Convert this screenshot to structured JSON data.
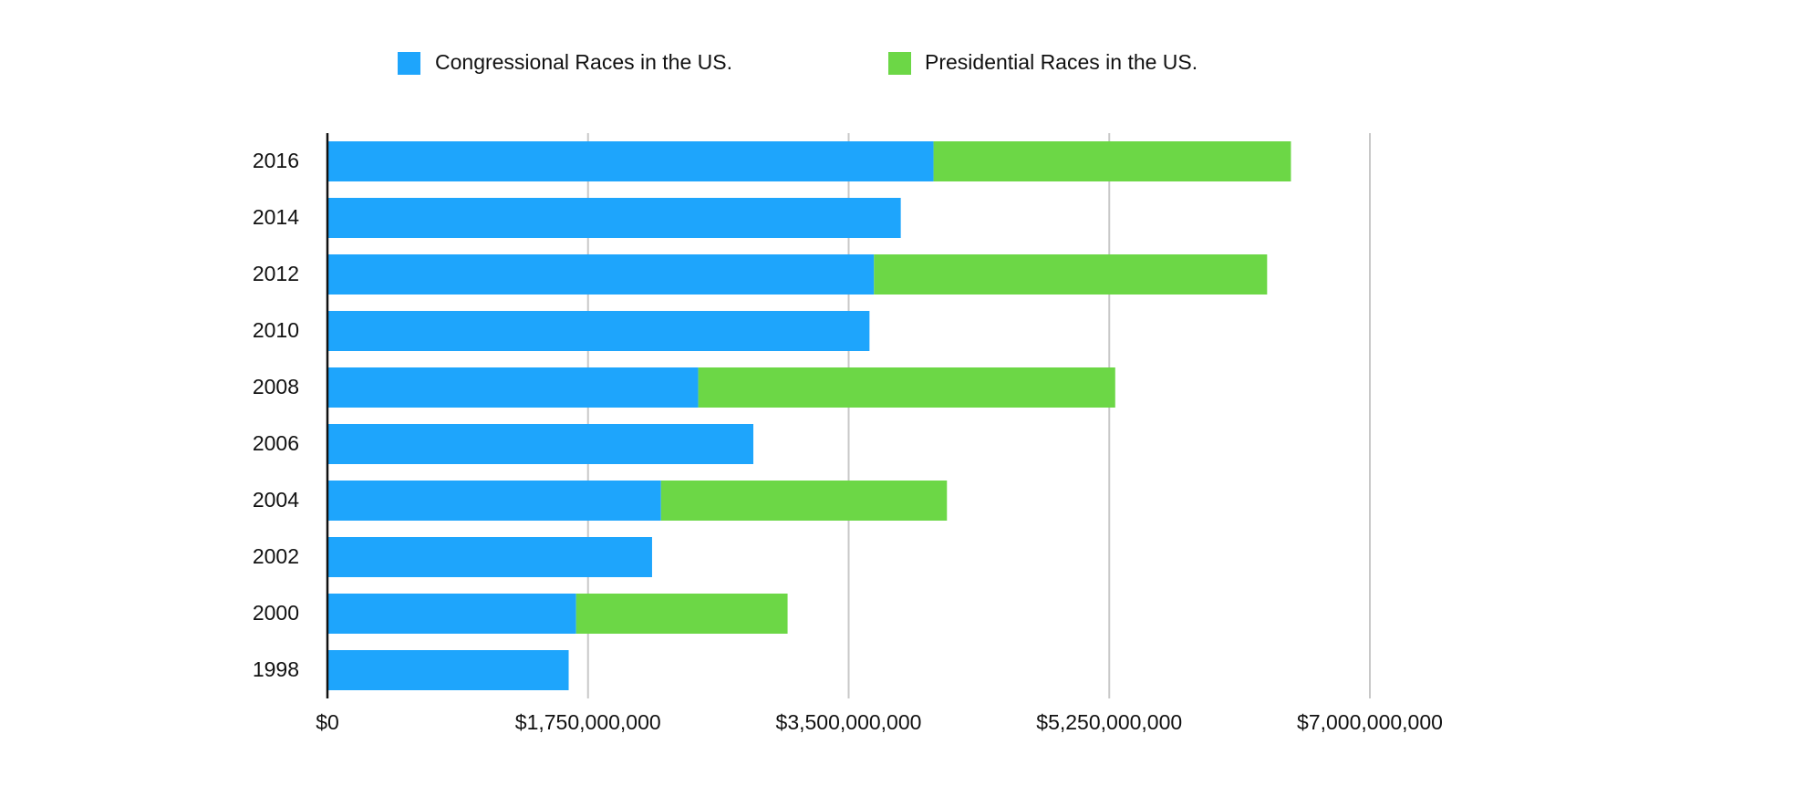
{
  "chart_data": {
    "type": "bar",
    "orientation": "horizontal",
    "stacked": true,
    "title": "",
    "xlabel": "",
    "ylabel": "",
    "categories": [
      "2016",
      "2014",
      "2012",
      "2010",
      "2008",
      "2006",
      "2004",
      "2002",
      "2000",
      "1998"
    ],
    "series": [
      {
        "name": "Congressional Races in the US.",
        "color": "#1ea5fc",
        "values": [
          4070000000,
          3850000000,
          3670000000,
          3640000000,
          2490000000,
          2860000000,
          2240000000,
          2180000000,
          1670000000,
          1620000000
        ]
      },
      {
        "name": "Presidential Races in the US.",
        "color": "#6cd746",
        "values": [
          2400000000,
          0,
          2640000000,
          0,
          2800000000,
          0,
          1920000000,
          0,
          1420000000,
          0
        ]
      }
    ],
    "xlim": [
      0,
      7000000000
    ],
    "xticks": [
      0,
      1750000000,
      3500000000,
      5250000000,
      7000000000
    ],
    "xtick_labels": [
      "$0",
      "$1,750,000,000",
      "$3,500,000,000",
      "$5,250,000,000",
      "$7,000,000,000"
    ],
    "grid": "vertical",
    "legend_position": "top"
  }
}
